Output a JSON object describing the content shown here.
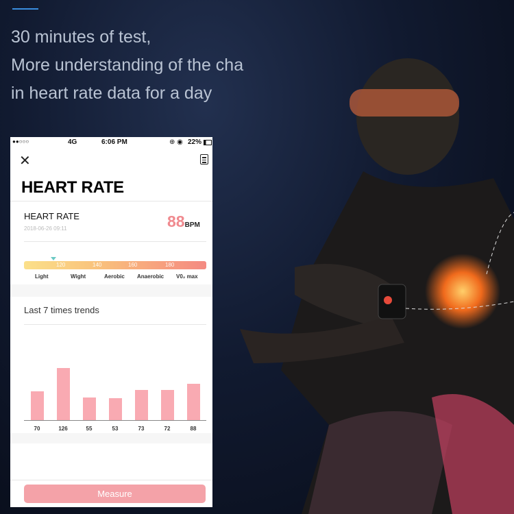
{
  "headline": {
    "line1": "30 minutes of test,",
    "line2": "More understanding of the cha",
    "line3": "in heart rate data for a day"
  },
  "status_bar": {
    "signal": "●●○○○",
    "network": "4G",
    "time": "6:06 PM",
    "battery": "22%"
  },
  "app": {
    "title": "HEART RATE",
    "card_title": "HEART RATE",
    "timestamp": "2018-06-26 09:11",
    "bpm_value": "88",
    "bpm_unit": "BPM",
    "zone_ticks": [
      "120",
      "140",
      "160",
      "180"
    ],
    "zone_labels": [
      "Light",
      "Wight",
      "Aerobic",
      "Anaerobic",
      "V0₂ max"
    ],
    "trends_title": "Last 7 times trends",
    "measure_label": "Measure"
  },
  "colors": {
    "accent": "#f08a8f",
    "bar": "#f9aab2",
    "button": "#f4a2a8"
  },
  "chart_data": {
    "type": "bar",
    "title": "Last 7 times trends",
    "categories": [
      "70",
      "126",
      "55",
      "53",
      "73",
      "72",
      "88"
    ],
    "values": [
      70,
      126,
      55,
      53,
      73,
      72,
      88
    ]
  }
}
